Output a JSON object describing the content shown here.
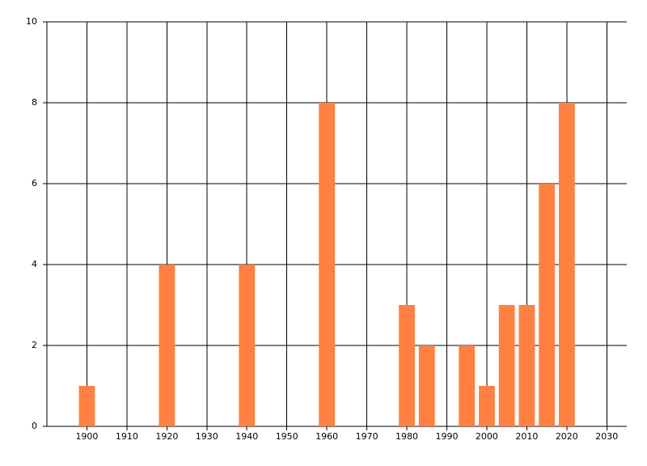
{
  "chart_data": {
    "type": "bar",
    "x": [
      1900,
      1920,
      1940,
      1960,
      1980,
      1985,
      1995,
      2000,
      2005,
      2010,
      2015,
      2020
    ],
    "values": [
      1,
      4,
      4,
      8,
      3,
      2,
      2,
      1,
      3,
      3,
      6,
      8
    ],
    "color": "#ff8040",
    "xlim": [
      1890,
      2035
    ],
    "xticks": [
      1900,
      1910,
      1920,
      1930,
      1940,
      1950,
      1960,
      1970,
      1980,
      1990,
      2000,
      2010,
      2020,
      2030
    ],
    "ylim": [
      0,
      10
    ],
    "yticks": [
      0,
      2,
      4,
      6,
      8,
      10
    ],
    "grid": true
  }
}
